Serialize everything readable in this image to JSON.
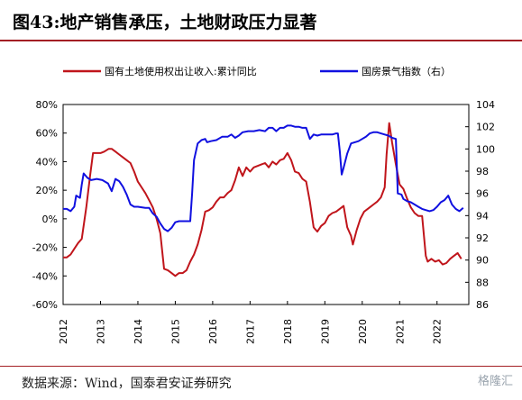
{
  "header": {
    "title": "图43:地产销售承压，土地财政压力显著"
  },
  "footer": {
    "source": "数据来源：Wind，国泰君安证券研究",
    "watermark": "格隆汇"
  },
  "colors": {
    "series_left": "#c0151b",
    "series_right": "#1010e0",
    "accent": "#a31f24"
  },
  "chart_data": {
    "type": "line",
    "title": "",
    "xlabel": "",
    "legend": {
      "placement": "top"
    },
    "grid": false,
    "x_ticks": [
      "2012",
      "2013",
      "2014",
      "2015",
      "2016",
      "2017",
      "2018",
      "2019",
      "2020",
      "2021",
      "2022"
    ],
    "y_left": {
      "lim": [
        -60,
        80
      ],
      "ticks": [
        "-60%",
        "-40%",
        "-20%",
        "0%",
        "20%",
        "40%",
        "60%",
        "80%"
      ]
    },
    "y_right": {
      "lim": [
        86,
        104
      ],
      "ticks": [
        "86",
        "88",
        "90",
        "92",
        "94",
        "96",
        "98",
        "100",
        "102",
        "104"
      ]
    },
    "series": [
      {
        "name": "国有土地使用权出让收入:累计同比",
        "axis": "left",
        "color": "#c0151b",
        "points": [
          [
            2012.0,
            -27
          ],
          [
            2012.1,
            -27
          ],
          [
            2012.2,
            -25
          ],
          [
            2012.3,
            -21
          ],
          [
            2012.4,
            -17
          ],
          [
            2012.5,
            -14
          ],
          [
            2012.62,
            8
          ],
          [
            2012.72,
            30
          ],
          [
            2012.8,
            46
          ],
          [
            2012.9,
            46
          ],
          [
            2013.0,
            46
          ],
          [
            2013.1,
            47
          ],
          [
            2013.22,
            49
          ],
          [
            2013.3,
            49
          ],
          [
            2013.4,
            47
          ],
          [
            2013.5,
            45
          ],
          [
            2013.6,
            43
          ],
          [
            2013.7,
            41
          ],
          [
            2013.8,
            39
          ],
          [
            2013.9,
            33
          ],
          [
            2014.0,
            26
          ],
          [
            2014.1,
            22
          ],
          [
            2014.2,
            18
          ],
          [
            2014.3,
            13
          ],
          [
            2014.4,
            8
          ],
          [
            2014.5,
            0
          ],
          [
            2014.6,
            -10
          ],
          [
            2014.7,
            -35
          ],
          [
            2014.8,
            -36
          ],
          [
            2014.9,
            -38
          ],
          [
            2015.0,
            -40
          ],
          [
            2015.1,
            -38
          ],
          [
            2015.2,
            -38
          ],
          [
            2015.3,
            -36
          ],
          [
            2015.4,
            -30
          ],
          [
            2015.5,
            -25
          ],
          [
            2015.6,
            -18
          ],
          [
            2015.7,
            -8
          ],
          [
            2015.8,
            5
          ],
          [
            2015.9,
            6
          ],
          [
            2016.0,
            8
          ],
          [
            2016.1,
            12
          ],
          [
            2016.2,
            15
          ],
          [
            2016.3,
            15
          ],
          [
            2016.4,
            18
          ],
          [
            2016.5,
            20
          ],
          [
            2016.6,
            27
          ],
          [
            2016.7,
            36
          ],
          [
            2016.8,
            30
          ],
          [
            2016.9,
            36
          ],
          [
            2017.0,
            33
          ],
          [
            2017.1,
            36
          ],
          [
            2017.2,
            37
          ],
          [
            2017.3,
            38
          ],
          [
            2017.4,
            39
          ],
          [
            2017.5,
            36
          ],
          [
            2017.6,
            40
          ],
          [
            2017.7,
            38
          ],
          [
            2017.8,
            41
          ],
          [
            2017.9,
            42
          ],
          [
            2018.0,
            46
          ],
          [
            2018.1,
            41
          ],
          [
            2018.2,
            33
          ],
          [
            2018.3,
            32
          ],
          [
            2018.4,
            28
          ],
          [
            2018.5,
            26
          ],
          [
            2018.6,
            12
          ],
          [
            2018.7,
            -6
          ],
          [
            2018.8,
            -9
          ],
          [
            2018.9,
            -5
          ],
          [
            2019.0,
            -3
          ],
          [
            2019.1,
            2
          ],
          [
            2019.2,
            4
          ],
          [
            2019.3,
            5
          ],
          [
            2019.4,
            7
          ],
          [
            2019.5,
            9
          ],
          [
            2019.6,
            -6
          ],
          [
            2019.7,
            -12
          ],
          [
            2019.75,
            -18
          ],
          [
            2019.85,
            -8
          ],
          [
            2019.95,
            0
          ],
          [
            2020.05,
            5
          ],
          [
            2020.2,
            8
          ],
          [
            2020.3,
            10
          ],
          [
            2020.4,
            12
          ],
          [
            2020.5,
            15
          ],
          [
            2020.6,
            22
          ],
          [
            2020.65,
            45
          ],
          [
            2020.72,
            67
          ],
          [
            2020.8,
            53
          ],
          [
            2020.9,
            38
          ],
          [
            2021.0,
            24
          ],
          [
            2021.1,
            21
          ],
          [
            2021.2,
            14
          ],
          [
            2021.3,
            8
          ],
          [
            2021.4,
            4
          ],
          [
            2021.5,
            2
          ],
          [
            2021.6,
            2
          ],
          [
            2021.7,
            -26
          ],
          [
            2021.75,
            -30
          ],
          [
            2021.85,
            -28
          ],
          [
            2021.95,
            -30
          ],
          [
            2022.05,
            -29
          ],
          [
            2022.15,
            -32
          ],
          [
            2022.25,
            -31
          ],
          [
            2022.35,
            -28
          ],
          [
            2022.45,
            -26
          ],
          [
            2022.55,
            -24
          ],
          [
            2022.65,
            -28
          ]
        ]
      },
      {
        "name": "国房景气指数（右）",
        "axis": "right",
        "color": "#1010e0",
        "points": [
          [
            2012.0,
            94.6
          ],
          [
            2012.1,
            94.6
          ],
          [
            2012.2,
            94.4
          ],
          [
            2012.3,
            94.8
          ],
          [
            2012.35,
            95.8
          ],
          [
            2012.45,
            95.6
          ],
          [
            2012.5,
            96.8
          ],
          [
            2012.55,
            97.8
          ],
          [
            2012.65,
            97.4
          ],
          [
            2012.75,
            97.2
          ],
          [
            2012.9,
            97.3
          ],
          [
            2013.05,
            97.2
          ],
          [
            2013.2,
            96.9
          ],
          [
            2013.3,
            96.2
          ],
          [
            2013.4,
            97.3
          ],
          [
            2013.5,
            97.1
          ],
          [
            2013.6,
            96.6
          ],
          [
            2013.7,
            95.9
          ],
          [
            2013.8,
            95.0
          ],
          [
            2013.9,
            94.8
          ],
          [
            2014.0,
            94.8
          ],
          [
            2014.2,
            94.7
          ],
          [
            2014.3,
            94.7
          ],
          [
            2014.4,
            94.2
          ],
          [
            2014.5,
            93.9
          ],
          [
            2014.6,
            93.3
          ],
          [
            2014.7,
            92.8
          ],
          [
            2014.8,
            92.6
          ],
          [
            2014.9,
            92.9
          ],
          [
            2015.0,
            93.4
          ],
          [
            2015.1,
            93.5
          ],
          [
            2015.2,
            93.5
          ],
          [
            2015.4,
            93.5
          ],
          [
            2015.45,
            96.0
          ],
          [
            2015.5,
            99.0
          ],
          [
            2015.6,
            100.5
          ],
          [
            2015.7,
            100.8
          ],
          [
            2015.8,
            100.9
          ],
          [
            2015.85,
            100.6
          ],
          [
            2015.95,
            100.7
          ],
          [
            2016.1,
            100.8
          ],
          [
            2016.25,
            101.1
          ],
          [
            2016.4,
            101.1
          ],
          [
            2016.5,
            101.3
          ],
          [
            2016.6,
            101.0
          ],
          [
            2016.7,
            101.2
          ],
          [
            2016.8,
            101.5
          ],
          [
            2016.95,
            101.6
          ],
          [
            2017.1,
            101.6
          ],
          [
            2017.25,
            101.7
          ],
          [
            2017.4,
            101.6
          ],
          [
            2017.5,
            101.9
          ],
          [
            2017.6,
            101.9
          ],
          [
            2017.7,
            101.6
          ],
          [
            2017.8,
            101.9
          ],
          [
            2017.9,
            101.9
          ],
          [
            2018.0,
            102.1
          ],
          [
            2018.1,
            102.1
          ],
          [
            2018.2,
            102.0
          ],
          [
            2018.3,
            102.0
          ],
          [
            2018.4,
            101.9
          ],
          [
            2018.5,
            101.9
          ],
          [
            2018.6,
            100.9
          ],
          [
            2018.7,
            101.3
          ],
          [
            2018.8,
            101.2
          ],
          [
            2018.9,
            101.3
          ],
          [
            2019.0,
            101.3
          ],
          [
            2019.1,
            101.3
          ],
          [
            2019.2,
            101.3
          ],
          [
            2019.3,
            101.4
          ],
          [
            2019.35,
            101.4
          ],
          [
            2019.4,
            99.8
          ],
          [
            2019.45,
            97.7
          ],
          [
            2019.5,
            98.3
          ],
          [
            2019.6,
            99.6
          ],
          [
            2019.7,
            100.5
          ],
          [
            2019.8,
            100.6
          ],
          [
            2019.9,
            100.7
          ],
          [
            2020.0,
            100.9
          ],
          [
            2020.1,
            101.1
          ],
          [
            2020.2,
            101.4
          ],
          [
            2020.3,
            101.5
          ],
          [
            2020.4,
            101.5
          ],
          [
            2020.5,
            101.4
          ],
          [
            2020.6,
            101.3
          ],
          [
            2020.7,
            101.2
          ],
          [
            2020.8,
            101.0
          ],
          [
            2020.9,
            100.9
          ],
          [
            2020.95,
            96.0
          ],
          [
            2021.05,
            95.9
          ],
          [
            2021.1,
            95.5
          ],
          [
            2021.2,
            95.3
          ],
          [
            2021.3,
            95.2
          ],
          [
            2021.4,
            95.0
          ],
          [
            2021.5,
            94.8
          ],
          [
            2021.6,
            94.6
          ],
          [
            2021.7,
            94.5
          ],
          [
            2021.8,
            94.4
          ],
          [
            2021.9,
            94.5
          ],
          [
            2022.0,
            94.8
          ],
          [
            2022.1,
            95.2
          ],
          [
            2022.2,
            95.4
          ],
          [
            2022.3,
            95.8
          ],
          [
            2022.4,
            95.0
          ],
          [
            2022.5,
            94.6
          ],
          [
            2022.6,
            94.4
          ],
          [
            2022.7,
            94.7
          ]
        ]
      }
    ]
  }
}
